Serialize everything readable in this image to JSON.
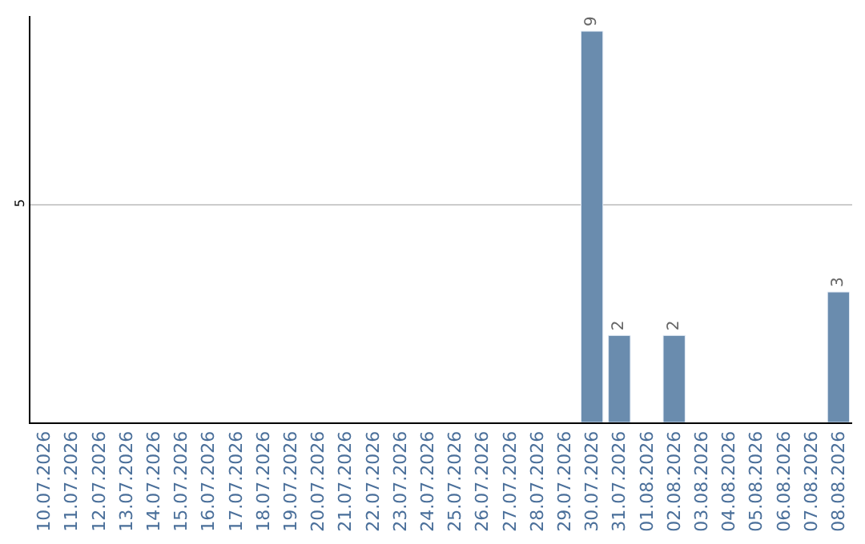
{
  "chart_data": {
    "type": "bar",
    "categories": [
      "10.07.2026",
      "11.07.2026",
      "12.07.2026",
      "13.07.2026",
      "14.07.2026",
      "15.07.2026",
      "16.07.2026",
      "17.07.2026",
      "18.07.2026",
      "19.07.2026",
      "20.07.2026",
      "21.07.2026",
      "22.07.2026",
      "23.07.2026",
      "24.07.2026",
      "25.07.2026",
      "26.07.2026",
      "27.07.2026",
      "28.07.2026",
      "29.07.2026",
      "30.07.2026",
      "31.07.2026",
      "01.08.2026",
      "02.08.2026",
      "03.08.2026",
      "04.08.2026",
      "05.08.2026",
      "06.08.2026",
      "07.08.2026",
      "08.08.2026"
    ],
    "values": [
      null,
      null,
      null,
      null,
      null,
      null,
      null,
      null,
      null,
      null,
      null,
      null,
      null,
      null,
      null,
      null,
      null,
      null,
      null,
      null,
      9,
      2,
      null,
      2,
      null,
      null,
      null,
      null,
      null,
      3
    ],
    "color": "#6a8cae",
    "ylim": [
      0,
      9.35
    ],
    "yticks": [
      5
    ],
    "grid": "y",
    "data_labels": true,
    "legend": false
  }
}
